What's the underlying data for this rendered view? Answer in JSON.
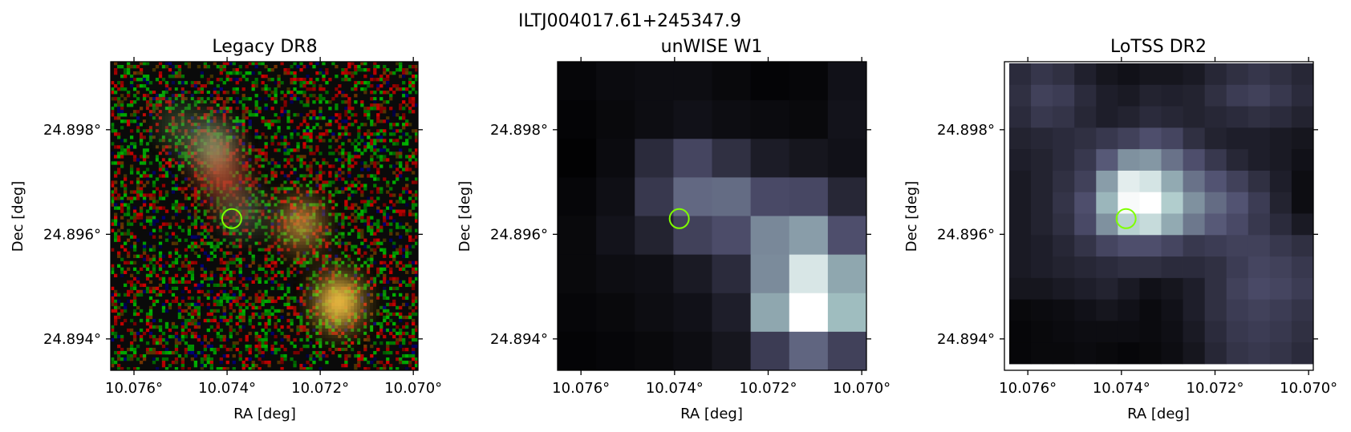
{
  "figure": {
    "title": "ILTJ004017.61+245347.9"
  },
  "chart_data": [
    {
      "type": "image",
      "title": "Legacy DR8",
      "xlabel": "RA [deg]",
      "ylabel": "Dec [deg]",
      "xlim": [
        10.0765,
        10.0699
      ],
      "ylim": [
        24.8934,
        24.8993
      ],
      "xticks": [
        10.076,
        10.074,
        10.072,
        10.07
      ],
      "xtick_labels": [
        "10.076°",
        "10.074°",
        "10.072°",
        "10.070°"
      ],
      "yticks": [
        24.894,
        24.896,
        24.898
      ],
      "ytick_labels": [
        "24.894°",
        "24.896°",
        "24.898°"
      ],
      "marker": {
        "ra": 10.0739,
        "dec": 24.8963,
        "color": "#7fff00",
        "shape": "circle"
      },
      "image_style": "rgb-noise",
      "sources": [
        {
          "ra": 10.0751,
          "dec": 24.8981,
          "color": "#6b8f5c",
          "strength": 0.35
        },
        {
          "ra": 10.0743,
          "dec": 24.8977,
          "color": "#8a9f6e",
          "strength": 0.7
        },
        {
          "ra": 10.0741,
          "dec": 24.8971,
          "color": "#b8341c",
          "strength": 0.6
        },
        {
          "ra": 10.0737,
          "dec": 24.8964,
          "color": "#6b8060",
          "strength": 0.5
        },
        {
          "ra": 10.0724,
          "dec": 24.8962,
          "color": "#c9903a",
          "strength": 0.75
        },
        {
          "ra": 10.0716,
          "dec": 24.8947,
          "color": "#e0b13e",
          "strength": 1.0
        }
      ]
    },
    {
      "type": "heatmap",
      "title": "unWISE W1",
      "xlabel": "RA [deg]",
      "ylabel": "Dec [deg]",
      "xlim": [
        10.0765,
        10.0699
      ],
      "ylim": [
        24.8934,
        24.8993
      ],
      "xticks": [
        10.076,
        10.074,
        10.072,
        10.07
      ],
      "xtick_labels": [
        "10.076°",
        "10.074°",
        "10.072°",
        "10.070°"
      ],
      "yticks": [
        24.894,
        24.896,
        24.898
      ],
      "ytick_labels": [
        "24.894°",
        "24.896°",
        "24.898°"
      ],
      "marker": {
        "ra": 10.0739,
        "dec": 24.8963,
        "color": "#7fff00",
        "shape": "circle"
      },
      "colormap": "bone",
      "grid_extent_cols": [
        0,
        1.0
      ],
      "grid_extent_rows": [
        0,
        1.0
      ],
      "grid": [
        [
          0.03,
          0.05,
          0.06,
          0.06,
          0.04,
          0.02,
          0.03,
          0.08
        ],
        [
          0.02,
          0.04,
          0.06,
          0.08,
          0.06,
          0.05,
          0.04,
          0.09
        ],
        [
          0.01,
          0.05,
          0.2,
          0.32,
          0.22,
          0.13,
          0.1,
          0.08
        ],
        [
          0.03,
          0.07,
          0.26,
          0.45,
          0.46,
          0.34,
          0.33,
          0.18
        ],
        [
          0.04,
          0.09,
          0.16,
          0.3,
          0.35,
          0.55,
          0.62,
          0.36
        ],
        [
          0.04,
          0.06,
          0.07,
          0.12,
          0.2,
          0.56,
          0.89,
          0.65
        ],
        [
          0.03,
          0.04,
          0.06,
          0.08,
          0.14,
          0.65,
          1.0,
          0.72
        ],
        [
          0.02,
          0.03,
          0.04,
          0.06,
          0.1,
          0.28,
          0.44,
          0.3
        ]
      ]
    },
    {
      "type": "heatmap",
      "title": "LoTSS DR2",
      "xlabel": "RA [deg]",
      "ylabel": "Dec [deg]",
      "xlim": [
        10.0765,
        10.0699
      ],
      "ylim": [
        24.8934,
        24.8993
      ],
      "xticks": [
        10.076,
        10.074,
        10.072,
        10.07
      ],
      "xtick_labels": [
        "10.076°",
        "10.074°",
        "10.072°",
        "10.070°"
      ],
      "yticks": [
        24.894,
        24.896,
        24.898
      ],
      "ytick_labels": [
        "24.894°",
        "24.896°",
        "24.898°"
      ],
      "marker": {
        "ra": 10.0739,
        "dec": 24.8963,
        "color": "#7fff00",
        "shape": "circle"
      },
      "colormap": "bone",
      "grid": [
        [
          0.2,
          0.25,
          0.22,
          0.15,
          0.1,
          0.08,
          0.1,
          0.1,
          0.12,
          0.18,
          0.22,
          0.25,
          0.22,
          0.18
        ],
        [
          0.22,
          0.3,
          0.28,
          0.2,
          0.14,
          0.12,
          0.16,
          0.15,
          0.16,
          0.22,
          0.28,
          0.3,
          0.26,
          0.2
        ],
        [
          0.2,
          0.26,
          0.24,
          0.18,
          0.14,
          0.16,
          0.2,
          0.18,
          0.16,
          0.18,
          0.2,
          0.22,
          0.2,
          0.16
        ],
        [
          0.16,
          0.18,
          0.2,
          0.22,
          0.26,
          0.3,
          0.36,
          0.32,
          0.22,
          0.16,
          0.14,
          0.14,
          0.12,
          0.1
        ],
        [
          0.14,
          0.16,
          0.2,
          0.26,
          0.4,
          0.58,
          0.6,
          0.48,
          0.36,
          0.26,
          0.18,
          0.14,
          0.12,
          0.08
        ],
        [
          0.12,
          0.16,
          0.22,
          0.3,
          0.62,
          0.92,
          0.88,
          0.66,
          0.48,
          0.38,
          0.3,
          0.22,
          0.14,
          0.06
        ],
        [
          0.12,
          0.16,
          0.24,
          0.36,
          0.7,
          0.98,
          1.0,
          0.78,
          0.58,
          0.46,
          0.38,
          0.28,
          0.16,
          0.06
        ],
        [
          0.12,
          0.16,
          0.22,
          0.34,
          0.58,
          0.8,
          0.84,
          0.66,
          0.5,
          0.4,
          0.34,
          0.26,
          0.2,
          0.12
        ],
        [
          0.12,
          0.14,
          0.18,
          0.24,
          0.32,
          0.36,
          0.36,
          0.32,
          0.26,
          0.28,
          0.3,
          0.3,
          0.26,
          0.22
        ],
        [
          0.12,
          0.14,
          0.16,
          0.18,
          0.2,
          0.22,
          0.22,
          0.2,
          0.2,
          0.22,
          0.28,
          0.32,
          0.3,
          0.26
        ],
        [
          0.1,
          0.1,
          0.12,
          0.14,
          0.16,
          0.12,
          0.08,
          0.1,
          0.14,
          0.22,
          0.3,
          0.34,
          0.32,
          0.28
        ],
        [
          0.04,
          0.05,
          0.06,
          0.08,
          0.1,
          0.08,
          0.05,
          0.08,
          0.14,
          0.22,
          0.28,
          0.3,
          0.28,
          0.24
        ],
        [
          0.03,
          0.04,
          0.05,
          0.06,
          0.06,
          0.06,
          0.05,
          0.07,
          0.12,
          0.2,
          0.26,
          0.28,
          0.26,
          0.22
        ],
        [
          0.03,
          0.04,
          0.04,
          0.05,
          0.04,
          0.03,
          0.04,
          0.06,
          0.1,
          0.18,
          0.24,
          0.26,
          0.24,
          0.2
        ]
      ]
    }
  ]
}
